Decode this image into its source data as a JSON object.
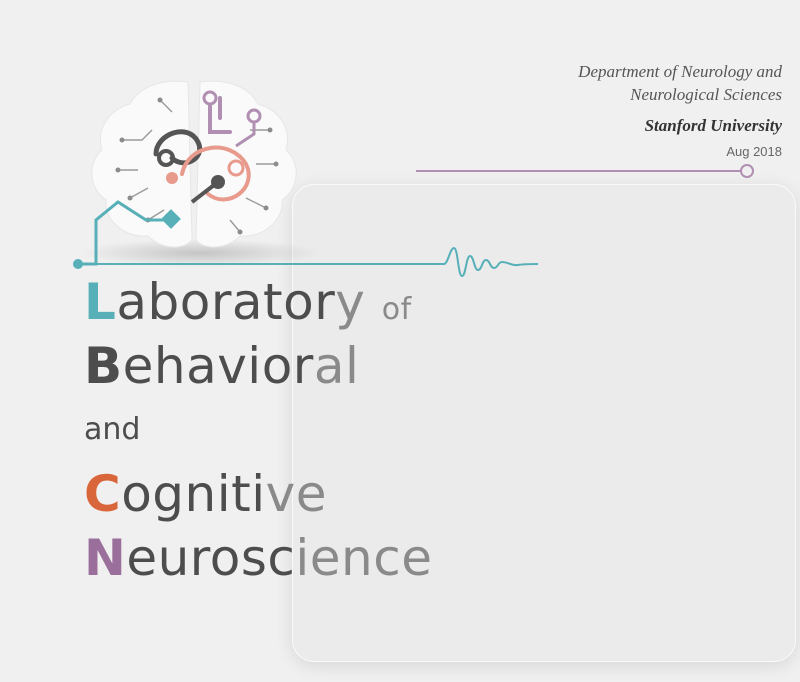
{
  "header": {
    "department_line1": "Department of Neurology and",
    "department_line2": "Neurological Sciences",
    "university": "Stanford University",
    "date": "Aug 2018"
  },
  "title": {
    "line1_initial": "L",
    "line1_rest": "aborator",
    "line1_tail": "y",
    "line1_suffix": "of",
    "line2_initial": "B",
    "line2_rest": "ehavior",
    "line2_tail": "al",
    "line3": "and",
    "line4_initial": "C",
    "line4_rest": "ogniti",
    "line4_tail": "ve",
    "line5_initial": "N",
    "line5_rest": "eurosc",
    "line5_tail": "ience"
  },
  "colors": {
    "teal": "#57b0b8",
    "orange": "#d9663a",
    "purple": "#9a6f9c",
    "salmon": "#e89a8c",
    "dark": "#4d4d4d"
  },
  "icons": {
    "logo": "brain-circuit-icon"
  }
}
